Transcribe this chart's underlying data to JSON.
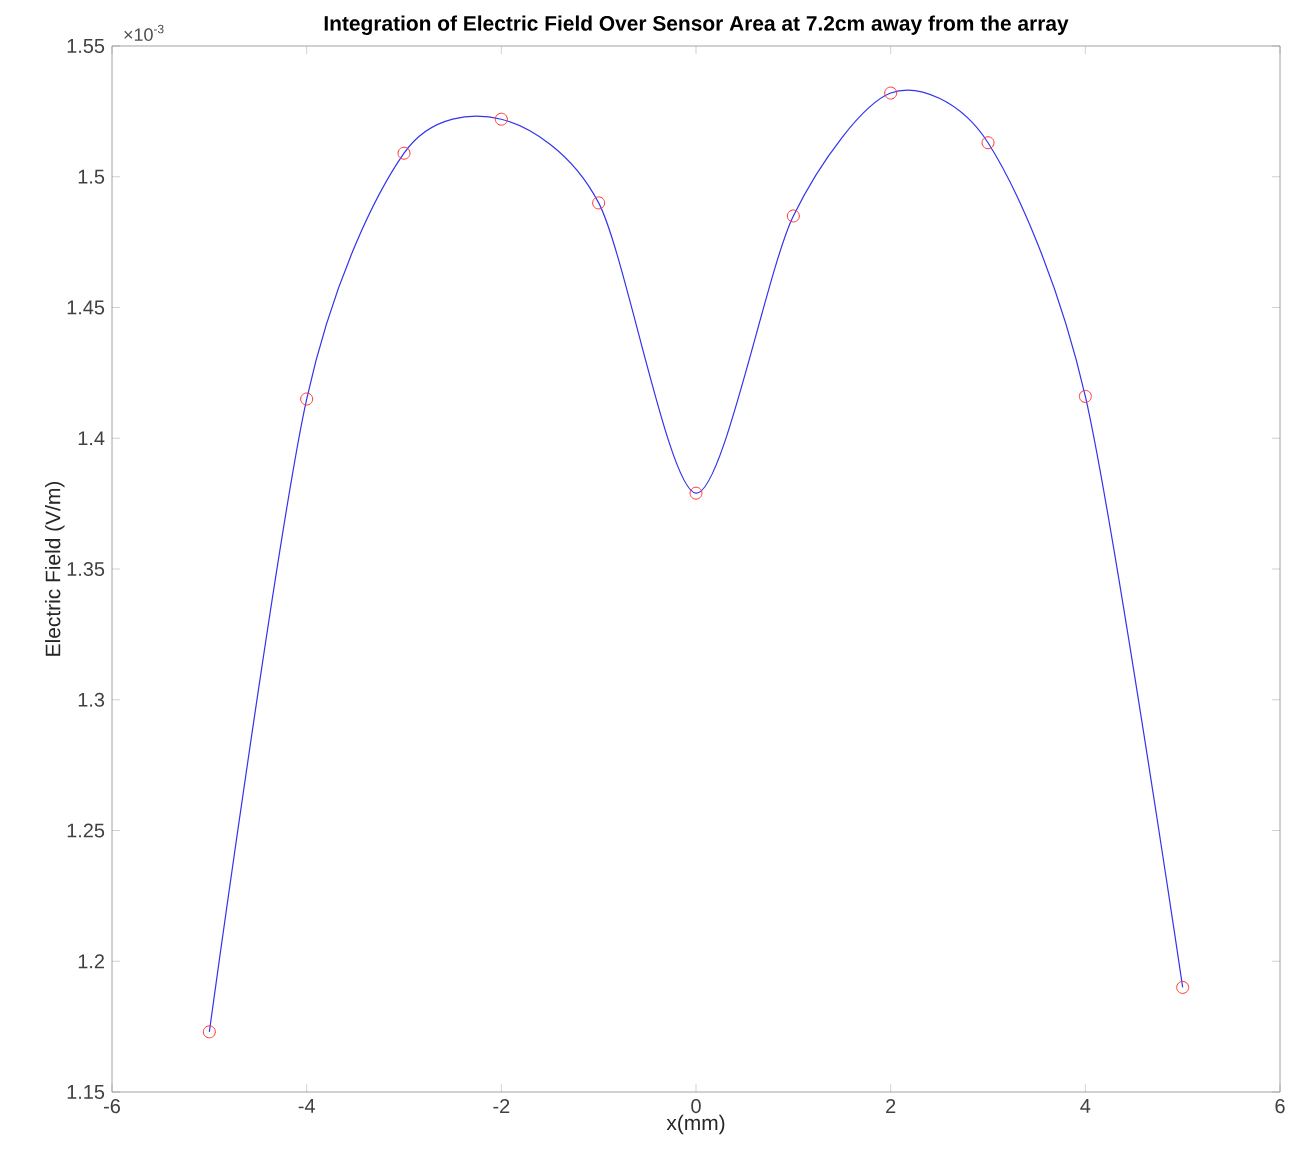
{
  "chart_data": {
    "type": "line",
    "title": "Integration of Electric Field Over Sensor Area at 7.2cm away from the array",
    "xlabel": "x(mm)",
    "ylabel": "Electric Field (V/m)",
    "annotations": [
      "×10$^{-3}$"
    ],
    "xlim": [
      -6,
      6
    ],
    "xticks": [
      -6,
      -4,
      -2,
      0,
      2,
      4,
      6
    ],
    "ylim": [
      1.15,
      1.55
    ],
    "yticks": [
      1.15,
      1.2,
      1.25,
      1.3,
      1.35,
      1.4,
      1.45,
      1.5,
      1.55
    ],
    "series": [
      {
        "color": "#3333ee",
        "marker": "none",
        "line_style": "solid",
        "x": [
          -5,
          -4,
          -3,
          -2,
          -1,
          0,
          1,
          2,
          3,
          4,
          5
        ],
        "values": [
          1.173,
          1.415,
          1.509,
          1.522,
          1.49,
          1.379,
          1.485,
          1.532,
          1.513,
          1.416,
          1.19
        ]
      },
      {
        "type": "scatter",
        "color": "#ff3333",
        "marker": "circle",
        "x": [
          -5,
          -4,
          -3,
          -2,
          -1,
          0,
          1,
          2,
          3,
          4,
          5
        ],
        "values": [
          1.173,
          1.415,
          1.509,
          1.522,
          1.49,
          1.379,
          1.485,
          1.532,
          1.513,
          1.416,
          1.19
        ]
      }
    ]
  }
}
